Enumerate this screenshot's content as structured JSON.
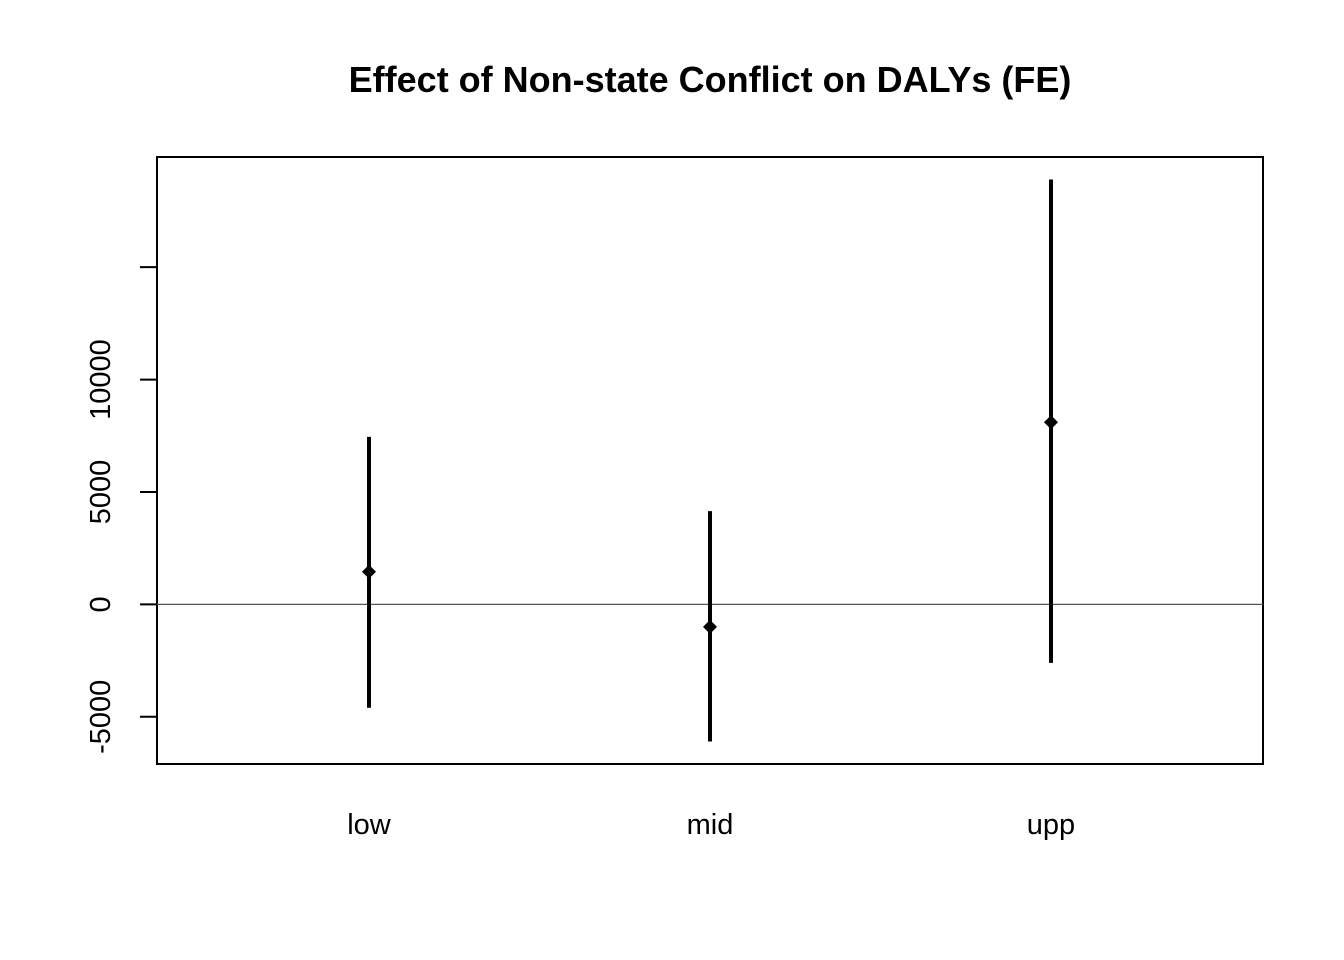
{
  "chart_data": {
    "type": "scatter",
    "title": "Effect of Non-state Conflict on DALYs (FE)",
    "xlabel": "",
    "ylabel": "",
    "categories": [
      "low",
      "mid",
      "upp"
    ],
    "points": [
      {
        "category": "low",
        "estimate": 1450,
        "lower": -4600,
        "upper": 7450
      },
      {
        "category": "mid",
        "estimate": -1000,
        "lower": -6100,
        "upper": 4150
      },
      {
        "category": "upp",
        "estimate": 8100,
        "lower": -2600,
        "upper": 18900
      }
    ],
    "y_ticks": [
      -5000,
      0,
      5000,
      10000,
      15000
    ],
    "y_tick_labels": [
      "-5000",
      "0",
      "5000",
      "10000",
      ""
    ],
    "ylim": [
      -7100,
      19900
    ],
    "reference_line": 0,
    "grid": false,
    "legend": "none",
    "colors": {
      "marks": "#000000",
      "reference_line": "#555555",
      "frame": "#000000"
    }
  }
}
